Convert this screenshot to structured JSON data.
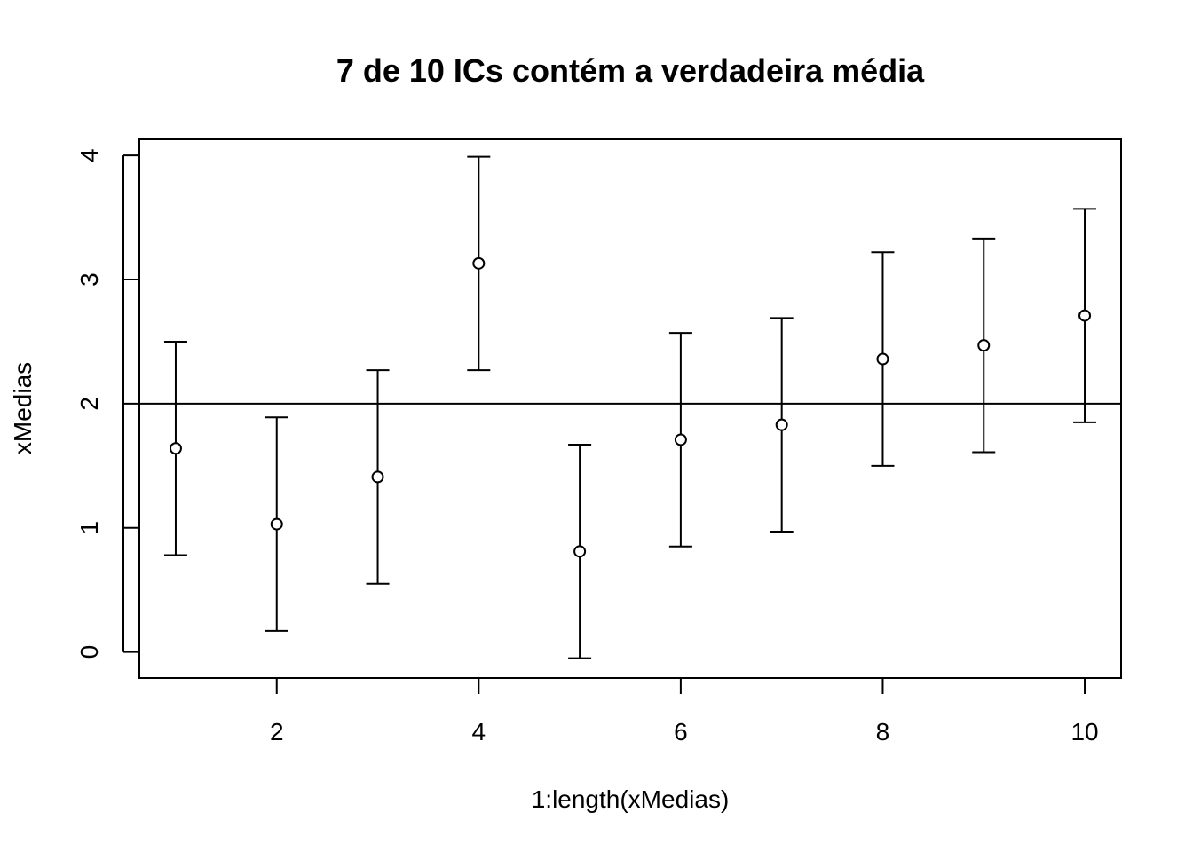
{
  "chart_data": {
    "type": "scatter",
    "title": "7 de 10 ICs contém a verdadeira média",
    "xlabel": "1:length(xMedias)",
    "ylabel": "xMedias",
    "xlim": [
      0.64,
      10.36
    ],
    "ylim": [
      -0.21,
      4.13
    ],
    "xticks": [
      2,
      4,
      6,
      8,
      10
    ],
    "yticks": [
      0,
      1,
      2,
      3,
      4
    ],
    "grid": false,
    "reference_line": {
      "y": 2
    },
    "x": [
      1,
      2,
      3,
      4,
      5,
      6,
      7,
      8,
      9,
      10
    ],
    "means": [
      1.64,
      1.03,
      1.41,
      3.13,
      0.81,
      1.71,
      1.83,
      2.36,
      2.47,
      2.71
    ],
    "lower": [
      0.78,
      0.17,
      0.55,
      2.27,
      -0.05,
      0.85,
      0.97,
      1.5,
      1.61,
      1.85
    ],
    "upper": [
      2.5,
      1.89,
      2.27,
      3.99,
      1.67,
      2.57,
      2.69,
      3.22,
      3.33,
      3.57
    ]
  }
}
